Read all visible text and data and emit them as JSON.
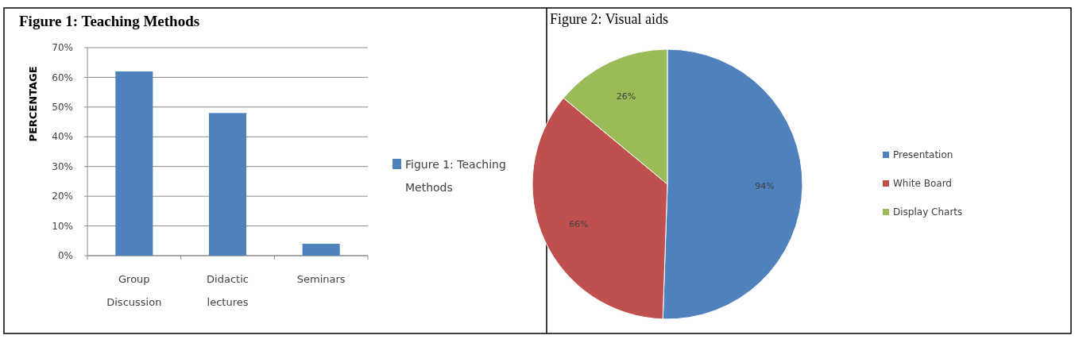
{
  "chart_data": [
    {
      "type": "bar",
      "title": "Figure 1: Teaching Methods",
      "ylabel": "PERCENTAGE",
      "categories": [
        "Group Discussion",
        "Didactic lectures",
        "Seminars"
      ],
      "series": [
        {
          "name": "Figure 1: Teaching Methods",
          "color": "#4f81bd",
          "values": [
            62,
            48,
            4
          ]
        }
      ],
      "ylim": [
        0,
        70
      ],
      "yticks": [
        {
          "value": 0,
          "label": "0%"
        },
        {
          "value": 10,
          "label": "10%"
        },
        {
          "value": 20,
          "label": "20%"
        },
        {
          "value": 30,
          "label": "30%"
        },
        {
          "value": 40,
          "label": "40%"
        },
        {
          "value": 50,
          "label": "50%"
        },
        {
          "value": 60,
          "label": "60%"
        },
        {
          "value": 70,
          "label": "70%"
        }
      ],
      "grid": "y",
      "legend": "right"
    },
    {
      "type": "pie",
      "title": "Figure 2: Visual aids",
      "categories": [
        "Presentation",
        "White Board",
        "Display Charts"
      ],
      "values": [
        94,
        66,
        26
      ],
      "colors": [
        "#4f81bd",
        "#c0504d",
        "#9bbb59"
      ],
      "value_labels": [
        "94%",
        "66%",
        "26%"
      ],
      "legend": "right"
    }
  ]
}
